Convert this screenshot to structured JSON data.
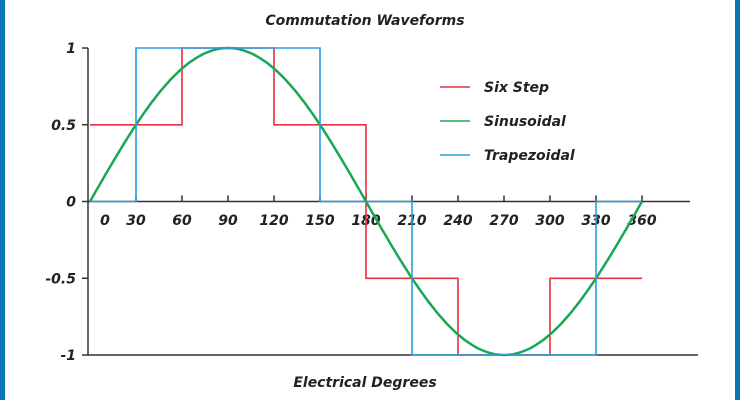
{
  "chart_data": {
    "type": "line",
    "title": "Commutation Waveforms",
    "xlabel": "Electrical Degrees",
    "ylabel": "",
    "xlim": [
      0,
      360
    ],
    "ylim": [
      -1,
      1
    ],
    "x_ticks": [
      0,
      30,
      60,
      90,
      120,
      150,
      180,
      210,
      240,
      270,
      300,
      330,
      360
    ],
    "y_ticks": [
      {
        "v": 1,
        "label": "1"
      },
      {
        "v": 0.5,
        "label": "0.5"
      },
      {
        "v": 0,
        "label": "0"
      },
      {
        "v": -0.5,
        "label": "-0.5"
      },
      {
        "v": -1,
        "label": "-1"
      }
    ],
    "legend_position": "top-right",
    "grid": false,
    "series": [
      {
        "name": "Six Step",
        "color": "#e8313e",
        "kind": "step",
        "points": [
          [
            0,
            0.5
          ],
          [
            60,
            0.5
          ],
          [
            60,
            1
          ],
          [
            120,
            1
          ],
          [
            120,
            0.5
          ],
          [
            180,
            0.5
          ],
          [
            180,
            -0.5
          ],
          [
            240,
            -0.5
          ],
          [
            240,
            -1
          ],
          [
            300,
            -1
          ],
          [
            300,
            -0.5
          ],
          [
            360,
            -0.5
          ]
        ]
      },
      {
        "name": "Sinusoidal",
        "color": "#1aa753",
        "kind": "sine",
        "amplitude": 1
      },
      {
        "name": "Trapezoidal",
        "color": "#2a9fe0",
        "kind": "step",
        "points": [
          [
            0,
            0
          ],
          [
            30,
            0
          ],
          [
            30,
            1
          ],
          [
            150,
            1
          ],
          [
            150,
            0
          ],
          [
            210,
            0
          ],
          [
            210,
            -1
          ],
          [
            330,
            -1
          ],
          [
            330,
            0
          ],
          [
            360,
            0
          ]
        ]
      }
    ]
  }
}
